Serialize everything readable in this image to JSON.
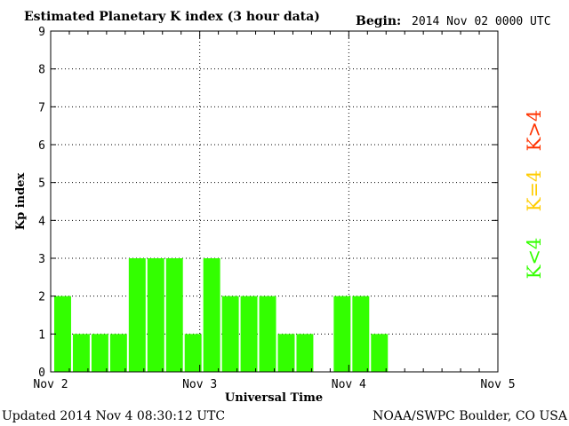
{
  "chart_data": {
    "type": "bar",
    "title": "Estimated Planetary K index (3 hour data)",
    "begin_label": "Begin:",
    "begin_value": "2014 Nov 02 0000 UTC",
    "xlabel": "Universal Time",
    "ylabel": "Kp index",
    "ylim": [
      0,
      9
    ],
    "yticks": [
      0,
      1,
      2,
      3,
      4,
      5,
      6,
      7,
      8,
      9
    ],
    "xlim_hours": [
      0,
      72
    ],
    "xticks": [
      {
        "hour": 0,
        "label": "Nov 2"
      },
      {
        "hour": 24,
        "label": "Nov 3"
      },
      {
        "hour": 48,
        "label": "Nov 4"
      },
      {
        "hour": 72,
        "label": "Nov 5"
      }
    ],
    "grid": true,
    "bar_width_hours": 3,
    "values": [
      2,
      1,
      1,
      1,
      3,
      3,
      3,
      1,
      3,
      2,
      2,
      2,
      1,
      1,
      null,
      2,
      2,
      1
    ],
    "colors": {
      "below_4": "#33ff00",
      "equal_4": "#ffcc00",
      "above_4": "#ff3300"
    },
    "legend": [
      {
        "label": "K<4",
        "color": "#33ff00"
      },
      {
        "label": "K=4",
        "color": "#ffcc00"
      },
      {
        "label": "K>4",
        "color": "#ff3300"
      }
    ]
  },
  "footer": {
    "updated": "Updated 2014 Nov  4 08:30:12 UTC",
    "source": "NOAA/SWPC Boulder, CO USA"
  }
}
